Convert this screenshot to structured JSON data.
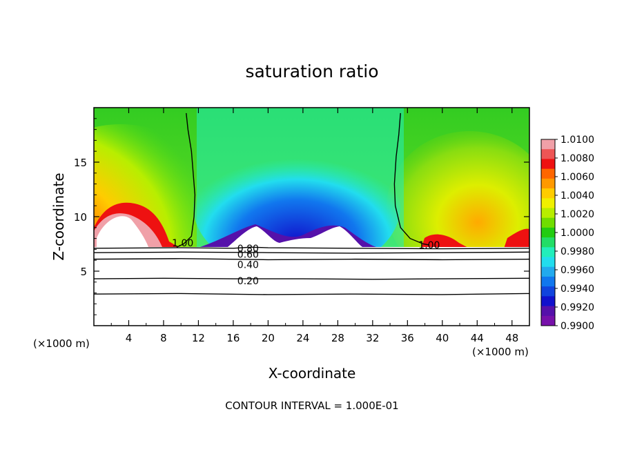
{
  "chart_data": {
    "type": "heatmap",
    "title": "saturation ratio",
    "xlabel": "X-coordinate",
    "ylabel": "Z-coordinate",
    "x_unit_left": "(×1000 m)",
    "x_unit_right": "(×1000 m)",
    "footer": "CONTOUR INTERVAL = 1.000E-01",
    "xlim": [
      0,
      50
    ],
    "ylim": [
      0,
      20
    ],
    "x_ticks": [
      4,
      8,
      12,
      16,
      20,
      24,
      28,
      32,
      36,
      40,
      44,
      48
    ],
    "y_ticks": [
      5,
      10,
      15
    ],
    "colorbar": {
      "min": 0.99,
      "max": 1.01,
      "labels": [
        "1.0100",
        "1.0080",
        "1.0060",
        "1.0040",
        "1.0020",
        "1.0000",
        "0.9980",
        "0.9960",
        "0.9940",
        "0.9920",
        "0.9900"
      ],
      "colors": [
        "#f0a0a8",
        "#ee5555",
        "#ee1111",
        "#ff6600",
        "#ff9900",
        "#ffcc00",
        "#f0f000",
        "#b8ee00",
        "#70dd00",
        "#22cc11",
        "#22dd66",
        "#22eebb",
        "#22ddee",
        "#22aaee",
        "#1177ee",
        "#1144dd",
        "#1111cc",
        "#5511aa",
        "#7711aa"
      ]
    },
    "contours": [
      {
        "level": "1.00",
        "label": "1.00",
        "points": [
          [
            9.5,
            7.2
          ],
          [
            10.3,
            7.5
          ],
          [
            11.2,
            8.2
          ],
          [
            11.5,
            10
          ],
          [
            11.6,
            12
          ],
          [
            11.4,
            14
          ],
          [
            11.2,
            16
          ],
          [
            10.8,
            18
          ],
          [
            10.6,
            19.5
          ]
        ],
        "label_at": [
          10.2,
          7.6
        ]
      },
      {
        "level": "1.00",
        "label": "1.00",
        "points": [
          [
            35.2,
            19.5
          ],
          [
            35,
            17.5
          ],
          [
            34.7,
            15.5
          ],
          [
            34.5,
            13
          ],
          [
            34.6,
            11
          ],
          [
            35.2,
            9
          ],
          [
            36.3,
            8
          ],
          [
            37.8,
            7.5
          ],
          [
            38.5,
            7.4
          ]
        ],
        "label_at": [
          38.5,
          7.4
        ]
      },
      {
        "level": "0.80",
        "label": "0.80",
        "points": [
          [
            0,
            7.1
          ],
          [
            10,
            7.15
          ],
          [
            16,
            7.1
          ],
          [
            18,
            7.2
          ],
          [
            20,
            7.15
          ],
          [
            30,
            7.1
          ],
          [
            40,
            7.05
          ],
          [
            50,
            7.1
          ]
        ],
        "label_at": [
          17.7,
          7.1
        ]
      },
      {
        "level": "0.60",
        "label": "0.60",
        "points": [
          [
            0,
            6.7
          ],
          [
            10,
            6.75
          ],
          [
            20,
            6.7
          ],
          [
            30,
            6.65
          ],
          [
            40,
            6.7
          ],
          [
            50,
            6.75
          ]
        ],
        "label_at": [
          17.7,
          6.55
        ]
      },
      {
        "level": "0.40",
        "label": "0.40",
        "points": [
          [
            0,
            6.1
          ],
          [
            10,
            6.15
          ],
          [
            20,
            6.05
          ],
          [
            30,
            6.1
          ],
          [
            40,
            6.05
          ],
          [
            50,
            6.1
          ]
        ],
        "label_at": [
          17.7,
          5.6
        ]
      },
      {
        "level": "0.20",
        "label": "0.20",
        "points": [
          [
            0,
            4.3
          ],
          [
            8,
            4.35
          ],
          [
            16,
            4.3
          ],
          [
            24,
            4.3
          ],
          [
            32,
            4.25
          ],
          [
            40,
            4.3
          ],
          [
            50,
            4.35
          ]
        ],
        "label_at": [
          17.7,
          4.1
        ]
      },
      {
        "level": "0.00",
        "label": "",
        "points": [
          [
            0,
            2.9
          ],
          [
            10,
            2.95
          ],
          [
            20,
            2.85
          ],
          [
            30,
            2.9
          ],
          [
            40,
            2.85
          ],
          [
            50,
            2.95
          ]
        ],
        "label_at": null
      }
    ]
  }
}
